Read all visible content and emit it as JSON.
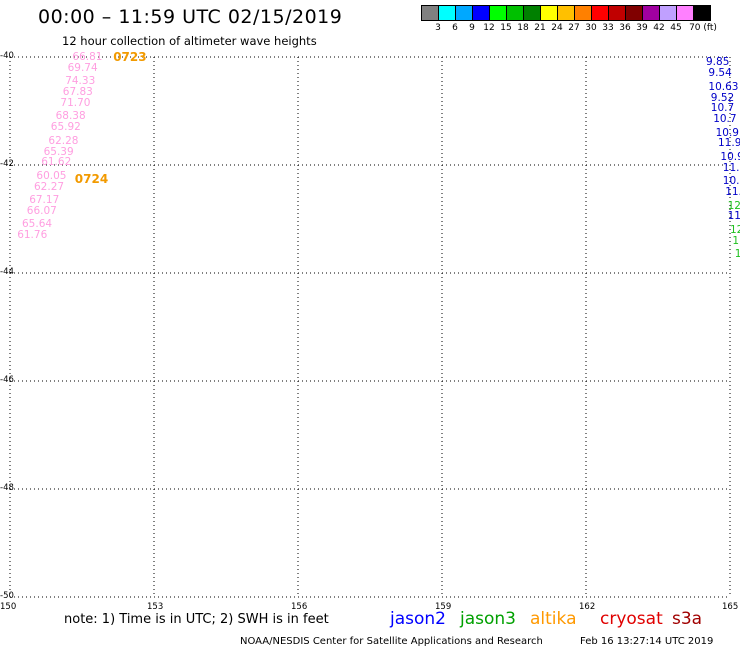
{
  "title": "00:00 – 11:59 UTC 02/15/2019",
  "subtitle": "12 hour collection of altimeter wave heights",
  "legend": {
    "colors": [
      "#808080",
      "#00ffff",
      "#00a8ff",
      "#0000ff",
      "#00ff00",
      "#00c000",
      "#008000",
      "#ffff00",
      "#ffc000",
      "#ff8000",
      "#ff0000",
      "#c00000",
      "#800000",
      "#a000a0",
      "#c0a0ff",
      "#ff80ff",
      "#000000"
    ],
    "labels": [
      "3",
      "6",
      "9",
      "12",
      "15",
      "18",
      "21",
      "24",
      "27",
      "30",
      "33",
      "36",
      "39",
      "42",
      "45",
      "70 (ft)"
    ]
  },
  "map": {
    "lon_range": [
      150,
      165
    ],
    "lat_range": [
      -40,
      -50
    ],
    "lat_labels": [
      "-40",
      "-42",
      "-44",
      "-46",
      "-48",
      "-50"
    ],
    "lon_labels": [
      "150",
      "153",
      "156",
      "159",
      "162",
      "165"
    ],
    "grid": "dotted"
  },
  "tracks": [
    {
      "satellite": "cryosat",
      "color": "#ff9ee0",
      "points": [
        {
          "lon": 151.3,
          "lat": -40.0,
          "swh": "66.81"
        },
        {
          "lon": 151.2,
          "lat": -40.2,
          "swh": "69.74"
        },
        {
          "lon": 151.15,
          "lat": -40.45,
          "swh": "74.33"
        },
        {
          "lon": 151.1,
          "lat": -40.65,
          "swh": "67.83"
        },
        {
          "lon": 151.05,
          "lat": -40.85,
          "swh": "71.70"
        },
        {
          "lon": 150.95,
          "lat": -41.1,
          "swh": "68.38"
        },
        {
          "lon": 150.85,
          "lat": -41.3,
          "swh": "65.92"
        },
        {
          "lon": 150.8,
          "lat": -41.55,
          "swh": "62.28"
        },
        {
          "lon": 150.7,
          "lat": -41.75,
          "swh": "65.39"
        },
        {
          "lon": 150.65,
          "lat": -41.95,
          "swh": "61.62"
        },
        {
          "lon": 150.55,
          "lat": -42.2,
          "swh": "60.05"
        },
        {
          "lon": 150.5,
          "lat": -42.4,
          "swh": "62.27"
        },
        {
          "lon": 150.4,
          "lat": -42.65,
          "swh": "67.17"
        },
        {
          "lon": 150.35,
          "lat": -42.85,
          "swh": "66.07"
        },
        {
          "lon": 150.25,
          "lat": -43.1,
          "swh": "65.64"
        },
        {
          "lon": 150.15,
          "lat": -43.3,
          "swh": "61.76"
        }
      ],
      "time_labels": [
        {
          "lon": 152.15,
          "lat": -40.0,
          "text": "0723"
        },
        {
          "lon": 151.35,
          "lat": -42.25,
          "text": "0724"
        }
      ]
    },
    {
      "satellite": "jason3",
      "color": "#0000c8",
      "points": [
        {
          "lon": 164.5,
          "lat": -40.1,
          "swh": "9.85",
          "color": "#0000c8"
        },
        {
          "lon": 164.55,
          "lat": -40.3,
          "swh": "9.54",
          "color": "#0000c8"
        },
        {
          "lon": 164.55,
          "lat": -40.55,
          "swh": "10.63",
          "color": "#0000c8"
        },
        {
          "lon": 164.6,
          "lat": -40.75,
          "swh": "9.52",
          "color": "#0000c8"
        },
        {
          "lon": 164.6,
          "lat": -40.95,
          "swh": "10.7",
          "color": "#0000c8"
        },
        {
          "lon": 164.65,
          "lat": -41.15,
          "swh": "10.7",
          "color": "#0000c8"
        },
        {
          "lon": 164.7,
          "lat": -41.4,
          "swh": "10.9",
          "color": "#0000c8"
        },
        {
          "lon": 164.75,
          "lat": -41.6,
          "swh": "11.9",
          "color": "#0000c8"
        },
        {
          "lon": 164.8,
          "lat": -41.85,
          "swh": "10.9",
          "color": "#0000c8"
        },
        {
          "lon": 164.85,
          "lat": -42.05,
          "swh": "11.",
          "color": "#0000c8"
        },
        {
          "lon": 164.85,
          "lat": -42.3,
          "swh": "10.",
          "color": "#0000c8"
        },
        {
          "lon": 164.9,
          "lat": -42.5,
          "swh": "11.",
          "color": "#0000c8"
        },
        {
          "lon": 164.95,
          "lat": -42.75,
          "swh": "12",
          "color": "#20c020"
        },
        {
          "lon": 164.95,
          "lat": -42.95,
          "swh": "11",
          "color": "#0000c8"
        },
        {
          "lon": 165.0,
          "lat": -43.2,
          "swh": "12",
          "color": "#20c020"
        },
        {
          "lon": 165.05,
          "lat": -43.4,
          "swh": "1",
          "color": "#20c020"
        },
        {
          "lon": 165.1,
          "lat": -43.65,
          "swh": "1",
          "color": "#20c020"
        }
      ]
    }
  ],
  "note": "note:  1) Time is in UTC;  2) SWH is in feet",
  "satellites": [
    {
      "name": "jason2",
      "color": "#0000ff"
    },
    {
      "name": "jason3",
      "color": "#00a000"
    },
    {
      "name": "altika",
      "color": "#ff9900"
    },
    {
      "name": "cryosat",
      "color": "#e00000"
    },
    {
      "name": "s3a",
      "color": "#a00000"
    }
  ],
  "credit": "NOAA/NESDIS Center for Satellite Applications and Research",
  "timestamp": "Feb 16 13:27:14 UTC 2019"
}
